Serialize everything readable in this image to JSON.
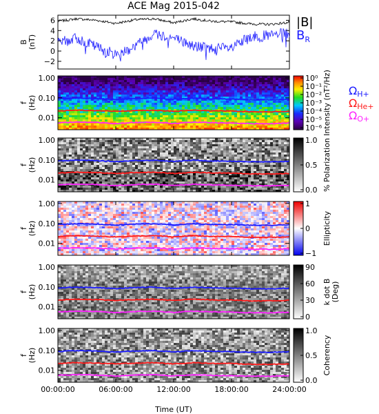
{
  "title": "ACE Mag 2015-042",
  "xlabel": "Time (UT)",
  "xtick_labels": [
    "00:00:00",
    "06:00:00",
    "12:00:00",
    "18:00:00",
    "24:00:00"
  ],
  "freq_tick_labels": [
    "1.00",
    "0.10",
    "0.01"
  ],
  "colors": {
    "B_total": "#000000",
    "B_R": "#1a1aff",
    "omega_H": "#1a1aff",
    "omega_He": "#ff1a1a",
    "omega_O": "#ff22ff"
  },
  "chart_data": [
    {
      "type": "line",
      "panel": "B",
      "ylabel": [
        "B",
        "(nT)"
      ],
      "ylim": [
        -3.5,
        7
      ],
      "yticks": [
        "6",
        "4",
        "2",
        "0",
        "−2"
      ],
      "legend": [
        {
          "label": "|B|",
          "color": "#000000"
        },
        {
          "label": "B",
          "sub": "R",
          "color": "#1a1aff"
        }
      ],
      "x_hours": [
        0,
        2,
        4,
        6,
        8,
        10,
        12,
        14,
        16,
        18,
        20,
        22,
        24
      ],
      "series": [
        {
          "values": [
            5.8,
            6.3,
            6.0,
            5.4,
            6.1,
            6.3,
            5.5,
            6.3,
            5.8,
            5.7,
            5.3,
            5.2,
            5.6
          ]
        },
        {
          "values": [
            1.5,
            2.5,
            0.8,
            -0.7,
            1.0,
            3.5,
            2.5,
            1.0,
            0.5,
            0.5,
            2.8,
            3.0,
            3.5
          ]
        }
      ]
    },
    {
      "type": "heatmap",
      "panel": "Intensity",
      "ylabel": [
        "f",
        "(Hz)"
      ],
      "cbar_label": "Intensity (nT²/Hz)",
      "cbar_ticks": [
        "10⁰",
        "10⁻¹",
        "10⁻²",
        "10⁻³",
        "10⁻⁴",
        "10⁻⁵",
        "10⁻⁶"
      ],
      "legend": [
        {
          "label": "Ω",
          "sub": "H+",
          "color": "#1a1aff"
        },
        {
          "label": "Ω",
          "sub": "He+",
          "color": "#ff1a1a"
        },
        {
          "label": "Ω",
          "sub": "O+",
          "color": "#ff22ff"
        }
      ]
    },
    {
      "type": "heatmap",
      "panel": "Polarization",
      "ylabel": [
        "f",
        "(Hz)"
      ],
      "cbar_label": "% Polarization",
      "cbar_ticks": [
        "1.0",
        "0.5",
        "0.0"
      ]
    },
    {
      "type": "heatmap",
      "panel": "Ellipticity",
      "ylabel": [
        "f",
        "(Hz)"
      ],
      "cbar_label": "Ellipticity",
      "cbar_ticks": [
        "1",
        "0",
        "−1"
      ]
    },
    {
      "type": "heatmap",
      "panel": "k dot B",
      "ylabel": [
        "f",
        "(Hz)"
      ],
      "cbar_label": [
        "k dot B",
        "(Deg)"
      ],
      "cbar_ticks": [
        "90",
        "60",
        "30",
        "0"
      ]
    },
    {
      "type": "heatmap",
      "panel": "Coherency",
      "ylabel": [
        "f",
        "(Hz)"
      ],
      "cbar_label": "Coherency",
      "cbar_ticks": [
        "1.0",
        "0.5",
        "0.0"
      ]
    }
  ],
  "gyrofrequency_hz": {
    "x_hours": [
      0,
      2,
      4,
      6,
      8,
      10,
      12,
      14,
      16,
      18,
      20,
      22,
      24
    ],
    "H+": [
      0.089,
      0.097,
      0.092,
      0.082,
      0.093,
      0.096,
      0.084,
      0.096,
      0.089,
      0.087,
      0.081,
      0.079,
      0.086
    ],
    "He+": [
      0.022,
      0.024,
      0.023,
      0.021,
      0.023,
      0.024,
      0.021,
      0.024,
      0.022,
      0.022,
      0.02,
      0.02,
      0.021
    ],
    "O+": [
      0.0056,
      0.0061,
      0.0058,
      0.0051,
      0.0058,
      0.006,
      0.0052,
      0.006,
      0.0056,
      0.0054,
      0.0051,
      0.005,
      0.0054
    ]
  }
}
